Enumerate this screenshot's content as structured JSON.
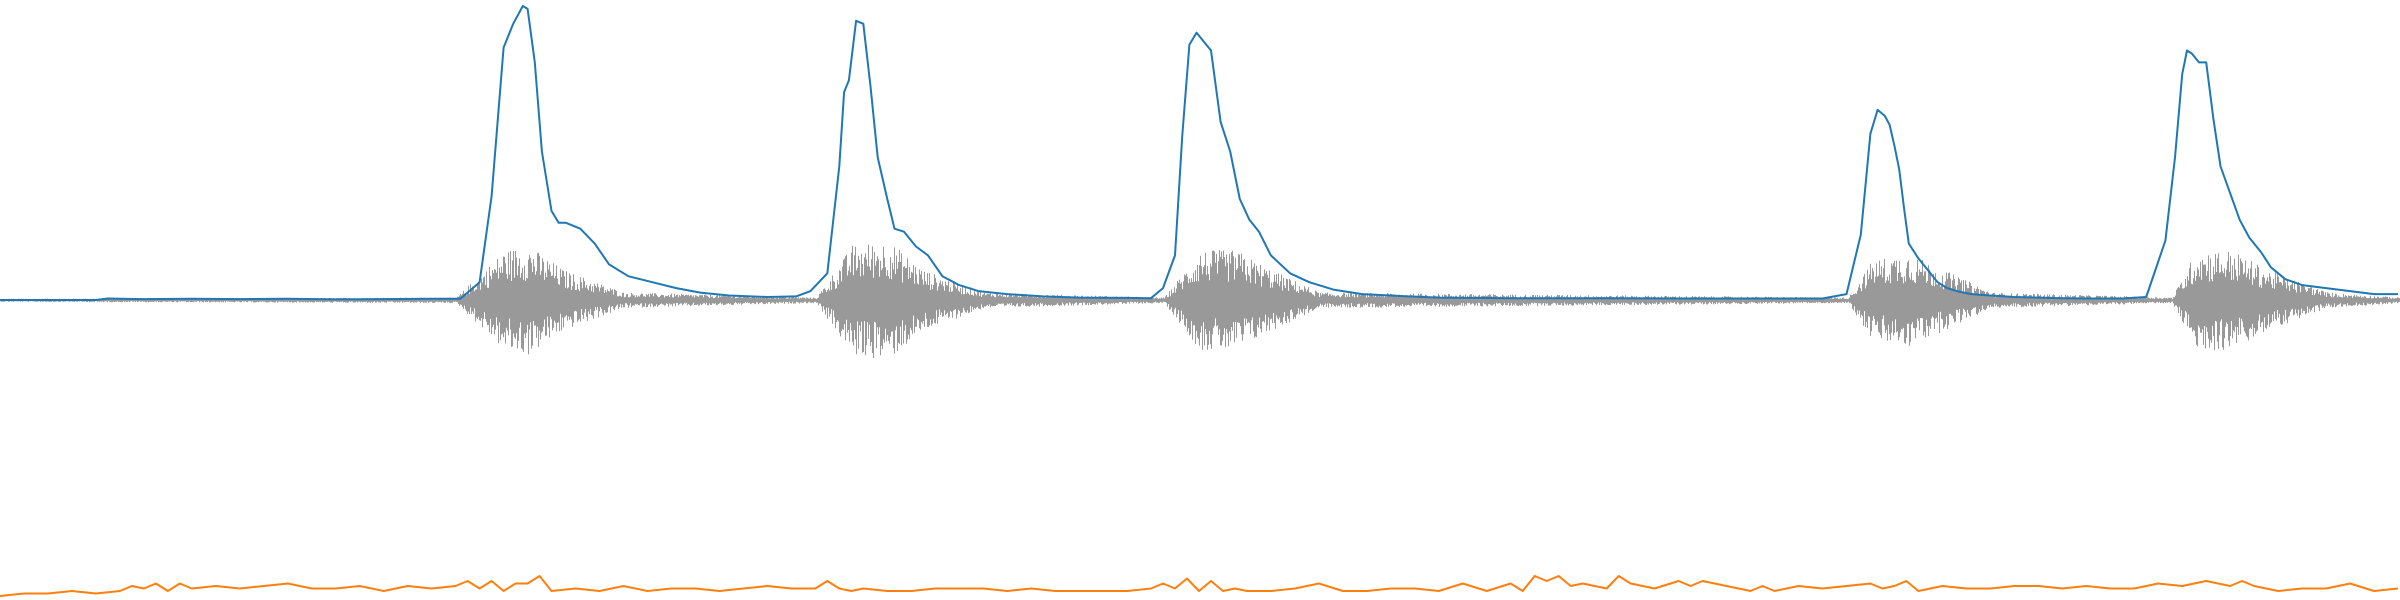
{
  "chart_data": {
    "type": "line",
    "title": "",
    "xlabel": "",
    "ylabel": "",
    "xlim": [
      0,
      10
    ],
    "grid": false,
    "legend": "none",
    "series": [
      {
        "kind": "waveform",
        "color": "#999999",
        "envelope": {
          "x": [
            0.0,
            0.4,
            1.9,
            2.1,
            2.2,
            2.35,
            2.6,
            3.4,
            3.55,
            3.7,
            3.85,
            4.1,
            4.85,
            5.0,
            5.15,
            5.3,
            5.5,
            7.7,
            7.8,
            7.95,
            8.1,
            8.3,
            9.05,
            9.15,
            9.3,
            9.45,
            9.7,
            10.0
          ],
          "amp": [
            0.005,
            0.006,
            0.01,
            0.2,
            0.22,
            0.12,
            0.03,
            0.01,
            0.22,
            0.24,
            0.12,
            0.03,
            0.01,
            0.2,
            0.2,
            0.12,
            0.03,
            0.01,
            0.16,
            0.19,
            0.12,
            0.03,
            0.01,
            0.2,
            0.2,
            0.12,
            0.03,
            0.01
          ]
        }
      },
      {
        "kind": "envelope",
        "color": "#1f77b4",
        "x": [
          0.0,
          0.4,
          0.45,
          0.6,
          0.8,
          1.0,
          1.2,
          1.4,
          1.6,
          1.8,
          1.92,
          2.0,
          2.05,
          2.1,
          2.14,
          2.18,
          2.2,
          2.23,
          2.26,
          2.3,
          2.33,
          2.36,
          2.42,
          2.48,
          2.54,
          2.62,
          2.72,
          2.82,
          2.92,
          3.04,
          3.2,
          3.32,
          3.38,
          3.45,
          3.5,
          3.52,
          3.54,
          3.57,
          3.6,
          3.63,
          3.66,
          3.7,
          3.73,
          3.77,
          3.82,
          3.87,
          3.93,
          4.0,
          4.08,
          4.2,
          4.35,
          4.5,
          4.7,
          4.8,
          4.85,
          4.9,
          4.93,
          4.96,
          4.99,
          5.02,
          5.05,
          5.09,
          5.13,
          5.17,
          5.21,
          5.25,
          5.3,
          5.38,
          5.46,
          5.56,
          5.68,
          5.82,
          6.0,
          6.3,
          6.7,
          7.0,
          7.4,
          7.6,
          7.7,
          7.76,
          7.8,
          7.83,
          7.86,
          7.88,
          7.9,
          7.92,
          7.94,
          7.96,
          8.0,
          8.04,
          8.08,
          8.12,
          8.16,
          8.22,
          8.3,
          8.4,
          8.5,
          8.6,
          8.7,
          8.85,
          8.95,
          9.03,
          9.07,
          9.1,
          9.12,
          9.14,
          9.17,
          9.2,
          9.23,
          9.26,
          9.3,
          9.34,
          9.38,
          9.43,
          9.47,
          9.53,
          9.6,
          9.7,
          9.8,
          9.9,
          10.0
        ],
        "y": [
          0.0,
          0.0,
          0.005,
          0.003,
          0.004,
          0.003,
          0.004,
          0.002,
          0.003,
          0.004,
          0.004,
          0.06,
          0.35,
          0.85,
          0.93,
          0.99,
          0.98,
          0.8,
          0.5,
          0.3,
          0.26,
          0.26,
          0.24,
          0.19,
          0.12,
          0.08,
          0.06,
          0.04,
          0.025,
          0.015,
          0.01,
          0.012,
          0.03,
          0.09,
          0.45,
          0.7,
          0.74,
          0.94,
          0.93,
          0.72,
          0.48,
          0.34,
          0.24,
          0.23,
          0.18,
          0.15,
          0.08,
          0.05,
          0.03,
          0.02,
          0.012,
          0.008,
          0.007,
          0.006,
          0.04,
          0.15,
          0.55,
          0.86,
          0.9,
          0.87,
          0.84,
          0.6,
          0.5,
          0.34,
          0.27,
          0.23,
          0.15,
          0.09,
          0.06,
          0.035,
          0.02,
          0.014,
          0.008,
          0.006,
          0.006,
          0.005,
          0.005,
          0.005,
          0.02,
          0.22,
          0.56,
          0.64,
          0.62,
          0.59,
          0.52,
          0.44,
          0.31,
          0.19,
          0.14,
          0.1,
          0.06,
          0.04,
          0.03,
          0.02,
          0.015,
          0.01,
          0.008,
          0.006,
          0.005,
          0.005,
          0.01,
          0.2,
          0.48,
          0.76,
          0.84,
          0.83,
          0.8,
          0.8,
          0.61,
          0.45,
          0.36,
          0.27,
          0.21,
          0.16,
          0.11,
          0.07,
          0.05,
          0.04,
          0.03,
          0.02,
          0.02
        ]
      },
      {
        "kind": "trace",
        "color": "#ff7f0e",
        "x": [
          0.0,
          0.1,
          0.2,
          0.3,
          0.4,
          0.5,
          0.55,
          0.6,
          0.65,
          0.7,
          0.75,
          0.8,
          0.9,
          1.0,
          1.1,
          1.2,
          1.3,
          1.4,
          1.5,
          1.6,
          1.7,
          1.8,
          1.9,
          1.95,
          2.0,
          2.05,
          2.1,
          2.15,
          2.2,
          2.25,
          2.3,
          2.4,
          2.5,
          2.6,
          2.7,
          2.8,
          2.9,
          3.0,
          3.1,
          3.2,
          3.3,
          3.4,
          3.45,
          3.5,
          3.55,
          3.6,
          3.7,
          3.8,
          3.9,
          4.0,
          4.1,
          4.2,
          4.3,
          4.4,
          4.5,
          4.6,
          4.7,
          4.8,
          4.85,
          4.9,
          4.95,
          5.0,
          5.05,
          5.1,
          5.15,
          5.2,
          5.3,
          5.4,
          5.5,
          5.6,
          5.7,
          5.8,
          5.9,
          6.0,
          6.1,
          6.2,
          6.3,
          6.35,
          6.4,
          6.45,
          6.5,
          6.55,
          6.6,
          6.7,
          6.75,
          6.8,
          6.9,
          7.0,
          7.05,
          7.1,
          7.2,
          7.3,
          7.35,
          7.4,
          7.5,
          7.6,
          7.7,
          7.8,
          7.85,
          7.9,
          7.95,
          8.0,
          8.1,
          8.2,
          8.3,
          8.4,
          8.5,
          8.6,
          8.7,
          8.8,
          8.9,
          9.0,
          9.1,
          9.2,
          9.3,
          9.35,
          9.4,
          9.5,
          9.6,
          9.7,
          9.8,
          9.9,
          10.0
        ],
        "y": [
          0.0,
          0.01,
          0.01,
          0.02,
          0.01,
          0.02,
          0.04,
          0.03,
          0.05,
          0.02,
          0.05,
          0.03,
          0.04,
          0.03,
          0.04,
          0.05,
          0.03,
          0.03,
          0.04,
          0.02,
          0.04,
          0.03,
          0.04,
          0.06,
          0.03,
          0.06,
          0.02,
          0.05,
          0.05,
          0.08,
          0.02,
          0.03,
          0.02,
          0.04,
          0.02,
          0.03,
          0.03,
          0.02,
          0.03,
          0.04,
          0.03,
          0.03,
          0.06,
          0.03,
          0.02,
          0.03,
          0.02,
          0.02,
          0.03,
          0.03,
          0.03,
          0.02,
          0.03,
          0.02,
          0.02,
          0.02,
          0.02,
          0.03,
          0.05,
          0.03,
          0.07,
          0.02,
          0.06,
          0.02,
          0.03,
          0.02,
          0.02,
          0.03,
          0.05,
          0.02,
          0.02,
          0.03,
          0.03,
          0.02,
          0.05,
          0.02,
          0.05,
          0.02,
          0.08,
          0.06,
          0.08,
          0.04,
          0.05,
          0.03,
          0.08,
          0.05,
          0.03,
          0.06,
          0.04,
          0.06,
          0.04,
          0.02,
          0.04,
          0.02,
          0.04,
          0.03,
          0.04,
          0.05,
          0.03,
          0.04,
          0.06,
          0.02,
          0.04,
          0.03,
          0.03,
          0.04,
          0.04,
          0.03,
          0.04,
          0.03,
          0.03,
          0.05,
          0.04,
          0.06,
          0.04,
          0.06,
          0.04,
          0.02,
          0.03,
          0.03,
          0.05,
          0.02,
          0.03
        ]
      }
    ]
  }
}
